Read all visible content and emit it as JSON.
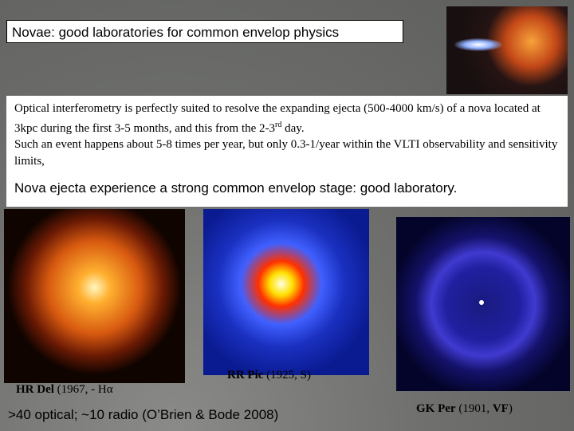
{
  "header": {
    "title": "Novae: good laboratories for common envelop physics"
  },
  "body": {
    "paragraph1": {
      "text": "Optical interferometry is perfectly suited to resolve the expanding ejecta (500-4000 km/s) of a nova located at 3kpc during the first 3-5 months, and this from the 2-3",
      "superscript": "rd",
      "tail": " day."
    },
    "paragraph2": "Such an event happens about 5-8 times per year, but only 0.3-1/year within the VLTI observability and sensitivity limits,",
    "highlight": "Nova ejecta experience a strong common envelop stage: good laboratory."
  },
  "images": [
    {
      "name": "HR Del",
      "detail": "(1967, - Hα"
    },
    {
      "name": "RR Pic",
      "detail": "(1925, S)"
    },
    {
      "name": "GK Per",
      "detail": "(1901, ",
      "strong": "VF",
      "end": ")"
    }
  ],
  "footnote": ">40 optical; ~10 radio (O’Brien & Bode 2008)"
}
